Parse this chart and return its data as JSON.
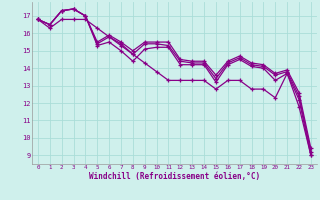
{
  "xlabel": "Windchill (Refroidissement éolien,°C)",
  "bg_color": "#cff0ec",
  "grid_color": "#aaddd8",
  "line_color": "#880088",
  "x_ticks": [
    0,
    1,
    2,
    3,
    4,
    5,
    6,
    7,
    8,
    9,
    10,
    11,
    12,
    13,
    14,
    15,
    16,
    17,
    18,
    19,
    20,
    21,
    22,
    23
  ],
  "y_ticks": [
    9,
    10,
    11,
    12,
    13,
    14,
    15,
    16,
    17
  ],
  "ylim": [
    8.5,
    17.8
  ],
  "xlim": [
    -0.5,
    23.5
  ],
  "lines": [
    [
      16.8,
      16.5,
      17.3,
      17.4,
      17.0,
      15.3,
      15.5,
      15.0,
      14.4,
      15.1,
      15.2,
      15.2,
      14.2,
      14.2,
      14.2,
      13.2,
      14.2,
      14.5,
      14.1,
      14.0,
      13.3,
      13.7,
      12.2,
      9.0
    ],
    [
      16.8,
      16.5,
      17.3,
      17.4,
      17.0,
      15.4,
      15.8,
      15.4,
      14.8,
      15.4,
      15.4,
      15.3,
      14.4,
      14.3,
      14.3,
      13.4,
      14.3,
      14.6,
      14.2,
      14.1,
      13.6,
      13.8,
      12.4,
      9.2
    ],
    [
      16.8,
      16.5,
      17.3,
      17.4,
      17.0,
      15.5,
      15.9,
      15.5,
      15.0,
      15.5,
      15.5,
      15.5,
      14.5,
      14.4,
      14.4,
      13.6,
      14.4,
      14.7,
      14.3,
      14.2,
      13.7,
      13.9,
      12.6,
      9.4
    ],
    [
      16.8,
      16.3,
      16.8,
      16.8,
      16.8,
      16.3,
      15.8,
      15.3,
      14.8,
      14.3,
      13.8,
      13.3,
      13.3,
      13.3,
      13.3,
      12.8,
      13.3,
      13.3,
      12.8,
      12.8,
      12.3,
      13.7,
      11.8,
      9.0
    ]
  ]
}
